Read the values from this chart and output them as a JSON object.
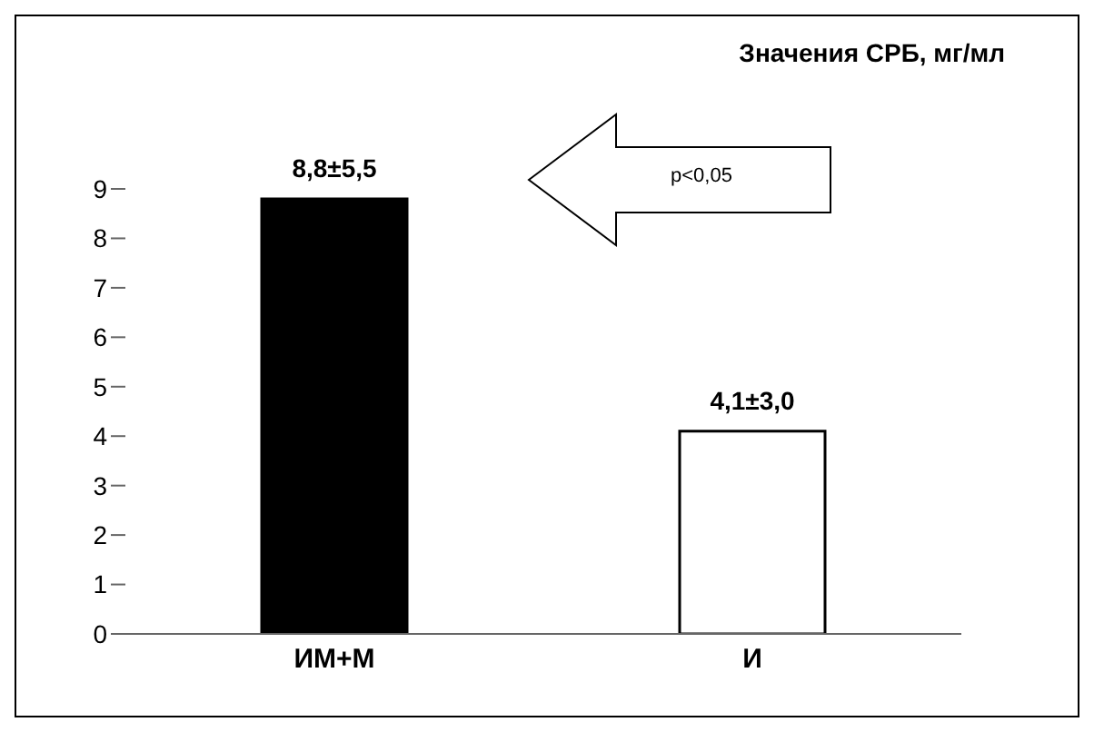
{
  "chart_data": {
    "type": "bar",
    "title": "Значения СРБ, мг/мл",
    "categories": [
      "ИМ+М",
      "И"
    ],
    "values": [
      8.8,
      4.1
    ],
    "colors": [
      "#000000",
      "#ffffff"
    ],
    "value_labels": [
      "8,8±5,5",
      "4,1±3,0"
    ],
    "ylim": [
      0,
      9
    ],
    "yticks": [
      0,
      1,
      2,
      3,
      4,
      5,
      6,
      7,
      8,
      9
    ],
    "annotations": [
      "p<0,05"
    ],
    "grid": false,
    "legend": false
  }
}
